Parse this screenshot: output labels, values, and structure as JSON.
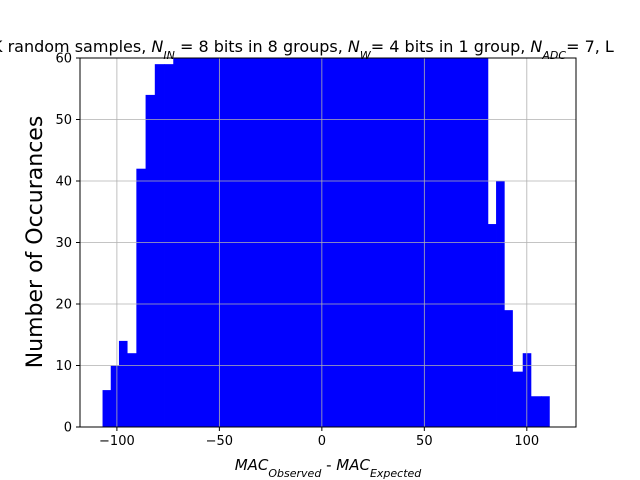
{
  "chart_data": {
    "type": "bar",
    "title_parts": [
      {
        "t": "K random samples, "
      },
      {
        "t": "N",
        "i": true
      },
      {
        "t": "IN",
        "i": true,
        "sub": true
      },
      {
        "t": " = 8 bits in 8 groups, "
      },
      {
        "t": "N",
        "i": true
      },
      {
        "t": "W",
        "i": true,
        "sub": true
      },
      {
        "t": "= 4 bits in 1 group, "
      },
      {
        "t": "N",
        "i": true
      },
      {
        "t": "ADC",
        "i": true,
        "sub": true
      },
      {
        "t": "= 7, L"
      }
    ],
    "xlabel_parts": [
      {
        "t": "MAC",
        "i": true
      },
      {
        "t": "Observed",
        "i": true,
        "sub": true
      },
      {
        "t": " - "
      },
      {
        "t": "MAC",
        "i": true
      },
      {
        "t": "Expected",
        "i": true,
        "sub": true
      }
    ],
    "ylabel": "Number of Occurances",
    "xlim": [
      -118,
      124
    ],
    "ylim": [
      0,
      60
    ],
    "xticks": [
      -100,
      -50,
      0,
      50,
      100
    ],
    "yticks": [
      0,
      10,
      20,
      30,
      40,
      50,
      60
    ],
    "grid": true,
    "bar_color": "#0000ff",
    "bins": [
      {
        "x0": -107,
        "x1": -103,
        "y": 6
      },
      {
        "x0": -103,
        "x1": -99,
        "y": 10
      },
      {
        "x0": -99,
        "x1": -95,
        "y": 14
      },
      {
        "x0": -95,
        "x1": -90.5,
        "y": 12
      },
      {
        "x0": -90.5,
        "x1": -86,
        "y": 42
      },
      {
        "x0": -86,
        "x1": -81.5,
        "y": 54
      },
      {
        "x0": -81.5,
        "x1": -77,
        "y": 59
      },
      {
        "x0": -77,
        "x1": -72.5,
        "y": 59
      },
      {
        "x0": -72.5,
        "x1": -68,
        "y": 60
      },
      {
        "x0": -68,
        "x1": 81,
        "y": 60
      },
      {
        "x0": 81,
        "x1": 85,
        "y": 33
      },
      {
        "x0": 85,
        "x1": 89,
        "y": 40
      },
      {
        "x0": 89,
        "x1": 93,
        "y": 19
      },
      {
        "x0": 93,
        "x1": 98,
        "y": 9
      },
      {
        "x0": 98,
        "x1": 102,
        "y": 12
      },
      {
        "x0": 102,
        "x1": 107,
        "y": 5
      },
      {
        "x0": 107,
        "x1": 111,
        "y": 5
      }
    ]
  }
}
